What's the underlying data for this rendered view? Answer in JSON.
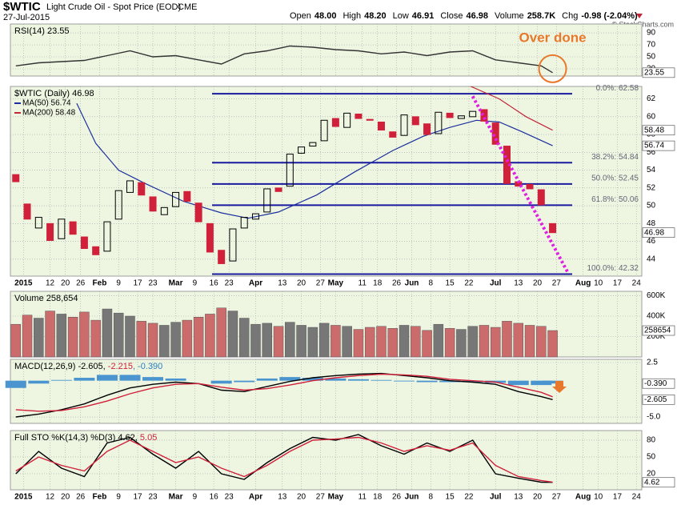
{
  "header": {
    "symbol": "$WTIC",
    "name": "Light Crude Oil - Spot Price (EOD)",
    "exchange": "CME",
    "date": "27-Jul-2015",
    "quote": [
      {
        "label": "Open",
        "value": "48.00"
      },
      {
        "label": "High",
        "value": "48.20"
      },
      {
        "label": "Low",
        "value": "46.91"
      },
      {
        "label": "Close",
        "value": "46.98"
      },
      {
        "label": "Volume",
        "value": "258.7K"
      },
      {
        "label": "Chg",
        "value": "-0.98 (-2.04%)"
      }
    ],
    "credit": "© StockCharts.com"
  },
  "chart_data": [
    {
      "type": "line",
      "legend": [
        {
          "text": "RSI(14) 23.55",
          "color": "#000"
        }
      ],
      "annotation": "Over done",
      "ylim": [
        18,
        104.7
      ],
      "yticks": [
        90,
        70,
        50,
        30
      ],
      "grid": true,
      "tags": [
        {
          "value": 23.55,
          "label": "23.55"
        }
      ],
      "series": [
        {
          "color": "#333",
          "x": [
            1,
            7,
            13,
            19,
            25,
            31,
            37,
            43,
            49,
            55,
            61,
            67,
            73,
            79,
            85,
            91,
            97,
            103,
            109,
            115,
            121,
            127,
            133,
            139,
            142
          ],
          "values": [
            35,
            40,
            42,
            44,
            52,
            60,
            50,
            52,
            45,
            38,
            55,
            60,
            68,
            66,
            62,
            60,
            55,
            58,
            52,
            58,
            60,
            45,
            40,
            35,
            23.55
          ]
        }
      ]
    },
    {
      "type": "candlestick",
      "legend": [
        {
          "text": "$WTIC (Daily) 46.98",
          "color": "#000"
        }
      ],
      "up_color": "#000",
      "down_color": "#d0203a",
      "xlim": [
        0,
        165
      ],
      "xticks": [
        {
          "value": 3,
          "label": "2015"
        },
        {
          "value": 10,
          "label": "12"
        },
        {
          "value": 14,
          "label": "20"
        },
        {
          "value": 18,
          "label": "26"
        },
        {
          "value": 23,
          "label": "Feb"
        },
        {
          "value": 28,
          "label": "9"
        },
        {
          "value": 33,
          "label": "17"
        },
        {
          "value": 37,
          "label": "23"
        },
        {
          "value": 43,
          "label": "Mar"
        },
        {
          "value": 48,
          "label": "9"
        },
        {
          "value": 53,
          "label": "16"
        },
        {
          "value": 57,
          "label": "23"
        },
        {
          "value": 64,
          "label": "Apr"
        },
        {
          "value": 71,
          "label": "13"
        },
        {
          "value": 76,
          "label": "20"
        },
        {
          "value": 81,
          "label": "27"
        },
        {
          "value": 85,
          "label": "May"
        },
        {
          "value": 92,
          "label": "11"
        },
        {
          "value": 96,
          "label": "18"
        },
        {
          "value": 101,
          "label": "26"
        },
        {
          "value": 105,
          "label": "Jun"
        },
        {
          "value": 110,
          "label": "8"
        },
        {
          "value": 115,
          "label": "15"
        },
        {
          "value": 120,
          "label": "22"
        },
        {
          "value": 127,
          "label": "Jul"
        },
        {
          "value": 133,
          "label": "13"
        },
        {
          "value": 138,
          "label": "20"
        },
        {
          "value": 143,
          "label": "27"
        },
        {
          "value": 150,
          "label": "Aug"
        },
        {
          "value": 154,
          "label": "10"
        },
        {
          "value": 159,
          "label": "17"
        },
        {
          "value": 164,
          "label": "24"
        }
      ],
      "ylim": [
        42.1,
        63.4
      ],
      "yticks": [
        44,
        46,
        48,
        50,
        52,
        54,
        56,
        58,
        60,
        62
      ],
      "grid": true,
      "x": [
        1,
        4,
        7,
        10,
        13,
        16,
        19,
        22,
        25,
        28,
        31,
        34,
        37,
        40,
        43,
        46,
        49,
        52,
        55,
        58,
        61,
        64,
        67,
        70,
        73,
        76,
        79,
        82,
        85,
        88,
        91,
        94,
        97,
        100,
        103,
        106,
        109,
        112,
        115,
        118,
        121,
        124,
        127,
        130,
        133,
        136,
        139,
        142
      ],
      "open": [
        53.5,
        50.2,
        47.5,
        48.0,
        46.3,
        48.2,
        46.5,
        45.4,
        44.9,
        48.5,
        51.5,
        52.6,
        51.0,
        49.0,
        49.9,
        51.6,
        50.3,
        48.0,
        45.0,
        43.8,
        47.5,
        48.5,
        49.3,
        52.0,
        52.2,
        55.9,
        56.7,
        57.3,
        59.8,
        58.8,
        60.3,
        59.7,
        59.4,
        58.3,
        57.9,
        60.0,
        59.2,
        58.1,
        60.4,
        59.8,
        60.0,
        60.8,
        59.3,
        56.7,
        52.7,
        52.4,
        51.8,
        48.0
      ],
      "close": [
        52.7,
        48.5,
        48.7,
        46.1,
        48.5,
        46.8,
        45.2,
        44.5,
        48.2,
        51.7,
        52.8,
        51.2,
        49.4,
        49.8,
        51.5,
        50.5,
        48.2,
        44.8,
        43.5,
        47.4,
        48.7,
        49.1,
        51.9,
        51.6,
        55.8,
        56.6,
        57.1,
        59.6,
        58.9,
        60.4,
        59.8,
        59.6,
        58.5,
        57.7,
        60.2,
        59.1,
        58.0,
        60.5,
        59.9,
        60.1,
        60.6,
        59.5,
        56.9,
        52.5,
        52.2,
        51.9,
        50.1,
        46.98
      ],
      "series": [
        {
          "name": "MA(50) 56.74",
          "color": "#1c2f9c",
          "x": [
            17,
            22,
            28,
            35,
            45,
            55,
            62,
            70,
            80,
            90,
            100,
            108,
            115,
            122,
            128,
            134,
            142
          ],
          "values": [
            61.5,
            57,
            54,
            52.5,
            50.5,
            49.2,
            48.6,
            49.3,
            51.2,
            53.8,
            56.2,
            57.8,
            58.8,
            59.6,
            59.4,
            58.3,
            56.74
          ]
        },
        {
          "name": "MA(200) 58.48",
          "color": "#c0283a",
          "x": [
            120,
            128,
            135,
            142
          ],
          "values": [
            63.5,
            62.0,
            60.0,
            58.48
          ]
        }
      ],
      "fib": [
        {
          "value": 62.58,
          "label": "0.0%: 62.58"
        },
        {
          "value": 54.84,
          "label": "38.2%: 54.84"
        },
        {
          "value": 52.45,
          "label": "50.0%: 52.45"
        },
        {
          "value": 50.06,
          "label": "61.8%: 50.06"
        },
        {
          "value": 42.32,
          "label": "100.0%: 42.32"
        }
      ],
      "trend_line": {
        "x": [
          121,
          146
        ],
        "y": [
          62.3,
          42.5
        ]
      },
      "tags": [
        {
          "value": 58.48,
          "label": "58.48"
        },
        {
          "value": 56.74,
          "label": "56.74"
        },
        {
          "value": 46.98,
          "label": "46.98"
        }
      ]
    },
    {
      "type": "bar",
      "legend": [
        {
          "text": "Volume 258,654",
          "color": "#000"
        }
      ],
      "ylim": [
        0,
        643000
      ],
      "yticks": [
        {
          "value": 600000,
          "label": "600K"
        },
        {
          "value": 400000,
          "label": "400K"
        },
        {
          "value": 200000,
          "label": "200K"
        }
      ],
      "grid": true,
      "x": [
        1,
        4,
        7,
        10,
        13,
        16,
        19,
        22,
        25,
        28,
        31,
        34,
        37,
        40,
        43,
        46,
        49,
        52,
        55,
        58,
        61,
        64,
        67,
        70,
        73,
        76,
        79,
        82,
        85,
        88,
        91,
        94,
        97,
        100,
        103,
        106,
        109,
        112,
        115,
        118,
        121,
        124,
        127,
        130,
        133,
        136,
        139,
        142
      ],
      "values": [
        320000,
        410000,
        380000,
        450000,
        420000,
        390000,
        440000,
        360000,
        470000,
        430000,
        400000,
        350000,
        330000,
        310000,
        340000,
        360000,
        390000,
        420000,
        480000,
        450000,
        380000,
        320000,
        330000,
        300000,
        340000,
        310000,
        290000,
        330000,
        310000,
        300000,
        270000,
        290000,
        300000,
        280000,
        310000,
        300000,
        260000,
        320000,
        280000,
        270000,
        300000,
        310000,
        290000,
        350000,
        330000,
        310000,
        300000,
        258654
      ],
      "tags": [
        {
          "value": 258654,
          "label": "258654"
        }
      ]
    },
    {
      "type": "line",
      "legend": [
        {
          "text": "MACD(12,26,9) -2.605, ",
          "color": "#000"
        },
        {
          "text": "-2.215",
          "color": "#d0203a"
        },
        {
          "text": ", -0.390",
          "color": "#2a7fc0"
        }
      ],
      "ylim": [
        -5.88,
        2.94
      ],
      "yticks": [
        2.5,
        {
          "value": -5,
          "label": "-5.0"
        }
      ],
      "grid": true,
      "tags": [
        {
          "value": -0.39,
          "label": "-0.390"
        },
        {
          "value": -2.605,
          "label": "-2.605"
        }
      ],
      "series": [
        {
          "type": "bar",
          "color": "#4a95d0",
          "x": [
            1,
            7,
            13,
            19,
            25,
            31,
            37,
            43,
            49,
            55,
            61,
            67,
            73,
            79,
            85,
            91,
            97,
            103,
            109,
            115,
            121,
            127,
            133,
            139,
            142
          ],
          "values": [
            -1.0,
            -0.4,
            0.1,
            0.4,
            0.8,
            0.8,
            0.5,
            0.3,
            0.0,
            -0.4,
            -0.2,
            0.3,
            0.5,
            0.4,
            0.3,
            0.2,
            0.1,
            -0.1,
            -0.2,
            -0.2,
            -0.2,
            -0.3,
            -0.6,
            -0.6,
            -0.39
          ]
        },
        {
          "color": "#000",
          "x": [
            1,
            7,
            13,
            19,
            25,
            31,
            37,
            43,
            49,
            55,
            61,
            67,
            73,
            79,
            85,
            91,
            97,
            103,
            109,
            115,
            121,
            127,
            133,
            139,
            142
          ],
          "values": [
            -5.0,
            -4.6,
            -4.0,
            -3.2,
            -2.0,
            -1.0,
            -0.5,
            -0.2,
            -0.4,
            -1.3,
            -1.5,
            -0.8,
            -0.1,
            0.4,
            0.7,
            0.9,
            1.0,
            0.7,
            0.4,
            0.0,
            -0.2,
            -0.5,
            -1.5,
            -2.2,
            -2.605
          ]
        },
        {
          "color": "#d0203a",
          "x": [
            1,
            7,
            13,
            19,
            25,
            31,
            37,
            43,
            49,
            55,
            61,
            67,
            73,
            79,
            85,
            91,
            97,
            103,
            109,
            115,
            121,
            127,
            133,
            139,
            142
          ],
          "values": [
            -4.0,
            -4.2,
            -4.1,
            -3.6,
            -2.8,
            -1.8,
            -1.0,
            -0.5,
            -0.4,
            -0.9,
            -1.3,
            -1.1,
            -0.6,
            0.0,
            0.4,
            0.7,
            0.9,
            0.8,
            0.6,
            0.2,
            0.0,
            -0.2,
            -0.9,
            -1.6,
            -2.215
          ]
        }
      ]
    },
    {
      "type": "line",
      "legend": [
        {
          "text": "Full STO %K(14,3) %D(3) 4.62, ",
          "color": "#000"
        },
        {
          "text": "5.05",
          "color": "#d0203a"
        }
      ],
      "xlim": [
        0,
        165
      ],
      "xticks": [
        {
          "value": 3,
          "label": "2015"
        },
        {
          "value": 10,
          "label": "12"
        },
        {
          "value": 14,
          "label": "20"
        },
        {
          "value": 18,
          "label": "26"
        },
        {
          "value": 23,
          "label": "Feb"
        },
        {
          "value": 28,
          "label": "9"
        },
        {
          "value": 33,
          "label": "17"
        },
        {
          "value": 37,
          "label": "23"
        },
        {
          "value": 43,
          "label": "Mar"
        },
        {
          "value": 48,
          "label": "9"
        },
        {
          "value": 53,
          "label": "16"
        },
        {
          "value": 57,
          "label": "23"
        },
        {
          "value": 64,
          "label": "Apr"
        },
        {
          "value": 71,
          "label": "13"
        },
        {
          "value": 76,
          "label": "20"
        },
        {
          "value": 81,
          "label": "27"
        },
        {
          "value": 85,
          "label": "May"
        },
        {
          "value": 92,
          "label": "11"
        },
        {
          "value": 96,
          "label": "18"
        },
        {
          "value": 101,
          "label": "26"
        },
        {
          "value": 105,
          "label": "Jun"
        },
        {
          "value": 110,
          "label": "8"
        },
        {
          "value": 115,
          "label": "15"
        },
        {
          "value": 120,
          "label": "22"
        },
        {
          "value": 127,
          "label": "Jul"
        },
        {
          "value": 133,
          "label": "13"
        },
        {
          "value": 138,
          "label": "20"
        },
        {
          "value": 143,
          "label": "27"
        },
        {
          "value": 150,
          "label": "Aug"
        },
        {
          "value": 154,
          "label": "10"
        },
        {
          "value": 159,
          "label": "17"
        },
        {
          "value": 164,
          "label": "24"
        }
      ],
      "ylim": [
        -8.6,
        97.1
      ],
      "yticks": [
        80,
        50,
        20
      ],
      "grid": true,
      "tags": [
        {
          "value": 4.62,
          "label": "4.62"
        }
      ],
      "series": [
        {
          "color": "#000",
          "x": [
            1,
            7,
            13,
            19,
            25,
            31,
            37,
            43,
            49,
            55,
            61,
            67,
            73,
            79,
            85,
            91,
            97,
            103,
            109,
            115,
            121,
            127,
            133,
            139,
            142
          ],
          "values": [
            20,
            60,
            30,
            15,
            75,
            85,
            55,
            30,
            60,
            20,
            10,
            40,
            65,
            85,
            80,
            90,
            70,
            55,
            75,
            60,
            80,
            20,
            12,
            5,
            4.62
          ]
        },
        {
          "color": "#d0203a",
          "x": [
            1,
            7,
            13,
            19,
            25,
            31,
            37,
            43,
            49,
            55,
            61,
            67,
            73,
            79,
            85,
            91,
            97,
            103,
            109,
            115,
            121,
            127,
            133,
            139,
            142
          ],
          "values": [
            25,
            50,
            35,
            25,
            60,
            80,
            60,
            40,
            50,
            30,
            15,
            35,
            60,
            80,
            82,
            85,
            75,
            60,
            70,
            62,
            75,
            35,
            15,
            8,
            5.05
          ]
        }
      ]
    }
  ]
}
